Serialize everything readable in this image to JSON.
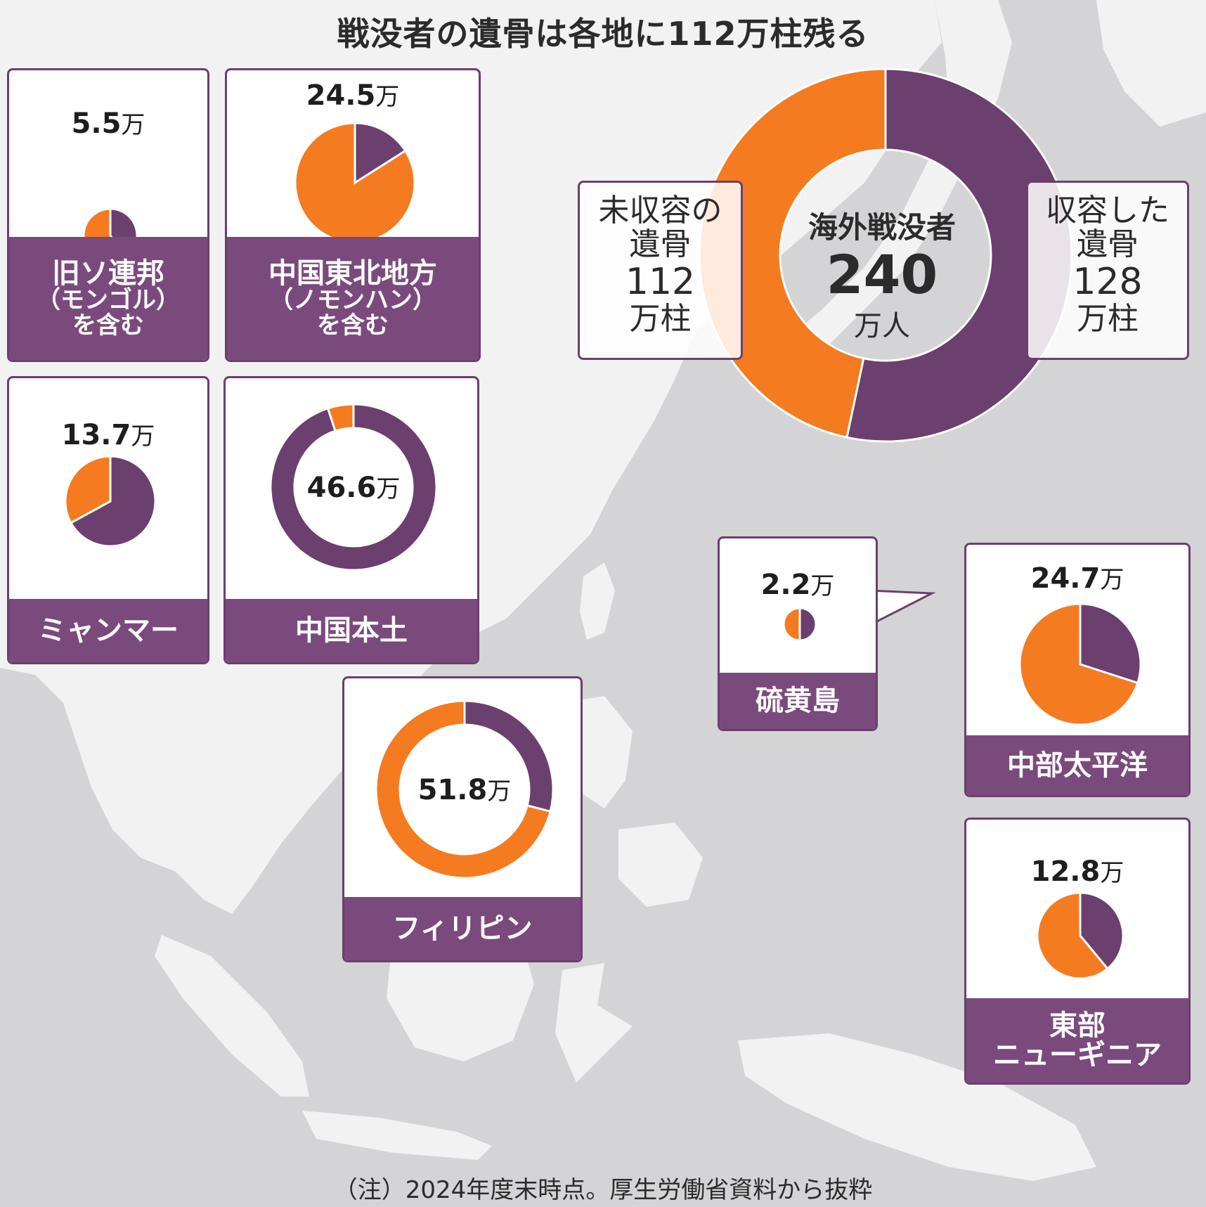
{
  "title": "戦没者の遺骨は各地に112万柱残る",
  "colors": {
    "unrecovered": "#f47b20",
    "recovered": "#6b3f6e",
    "label_bg": "#7a4a7d",
    "land": "#f2f2f2",
    "sea": "#d4d4d6"
  },
  "overall": {
    "center_label": "海外戦没者",
    "center_value": "240",
    "center_unit": "万人",
    "left_label_line1": "未収容の",
    "left_label_line2": "遺骨",
    "left_value": "112",
    "left_unit": "万柱",
    "right_label_line1": "収容した",
    "right_label_line2": "遺骨",
    "right_value": "128",
    "right_unit": "万柱"
  },
  "regions": [
    {
      "value": "5.5",
      "unit": "万",
      "name": "旧ソ連邦",
      "sub1": "（モンゴル）",
      "sub2": "を含む"
    },
    {
      "value": "24.5",
      "unit": "万",
      "name": "中国東北地方",
      "sub1": "（ノモンハン）",
      "sub2": "を含む"
    },
    {
      "value": "13.7",
      "unit": "万",
      "name": "ミャンマー"
    },
    {
      "value": "46.6",
      "unit": "万",
      "name": "中国本土"
    },
    {
      "value": "51.8",
      "unit": "万",
      "name": "フィリピン"
    },
    {
      "value": "2.2",
      "unit": "万",
      "name": "硫黄島"
    },
    {
      "value": "24.7",
      "unit": "万",
      "name": "中部太平洋"
    },
    {
      "value": "12.8",
      "unit": "万",
      "name": "東部",
      "name2": "ニューギニア"
    }
  ],
  "note": "（注）2024年度末時点。厚生労働省資料から抜粋",
  "chart_data": {
    "type": "pie",
    "title": "戦没者の遺骨は各地に112万柱残る",
    "unit": "万柱",
    "series_names": [
      "未収容の遺骨",
      "収容した遺骨"
    ],
    "total": {
      "category": "海外戦没者",
      "total": 240,
      "unrecovered": 112,
      "recovered": 128
    },
    "regions": [
      {
        "category": "旧ソ連邦（モンゴルを含む）",
        "total": 5.5,
        "unrecovered_share": 0.6,
        "recovered_share": 0.4
      },
      {
        "category": "中国東北地方（ノモンハンを含む）",
        "total": 24.5,
        "unrecovered_share": 0.84,
        "recovered_share": 0.16
      },
      {
        "category": "ミャンマー",
        "total": 13.7,
        "unrecovered_share": 0.33,
        "recovered_share": 0.67
      },
      {
        "category": "中国本土",
        "total": 46.6,
        "unrecovered_share": 0.05,
        "recovered_share": 0.95
      },
      {
        "category": "フィリピン",
        "total": 51.8,
        "unrecovered_share": 0.71,
        "recovered_share": 0.29
      },
      {
        "category": "硫黄島",
        "total": 2.2,
        "unrecovered_share": 0.5,
        "recovered_share": 0.5
      },
      {
        "category": "中部太平洋",
        "total": 24.7,
        "unrecovered_share": 0.7,
        "recovered_share": 0.3
      },
      {
        "category": "東部ニューギニア",
        "total": 12.8,
        "unrecovered_share": 0.61,
        "recovered_share": 0.39
      }
    ]
  }
}
